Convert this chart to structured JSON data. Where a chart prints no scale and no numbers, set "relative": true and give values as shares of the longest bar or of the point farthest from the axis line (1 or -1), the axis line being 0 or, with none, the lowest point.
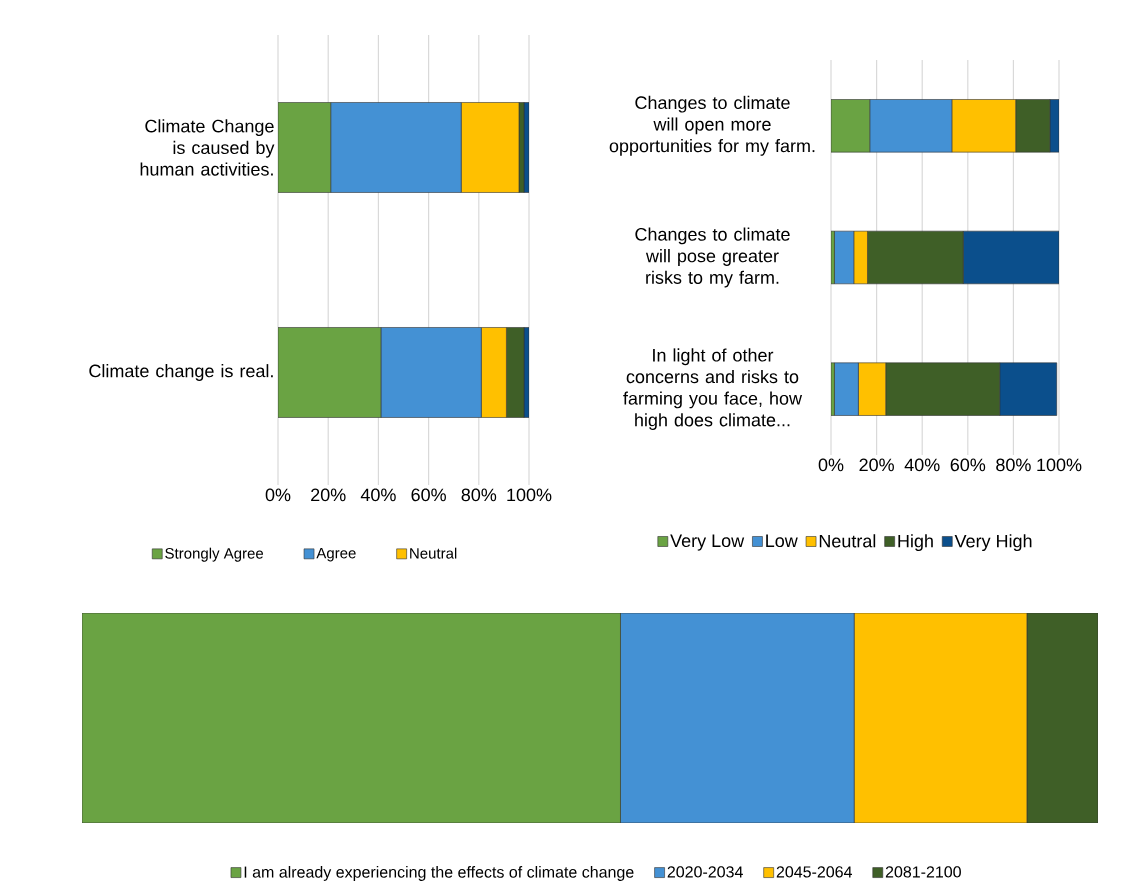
{
  "chart_data": [
    {
      "type": "bar",
      "orientation": "horizontal",
      "stacked": true,
      "categories": [
        "Climate Change is caused by human activities.",
        "Climate change is real."
      ],
      "series": [
        {
          "name": "Strongly Agree",
          "color": "#6aa343",
          "values": [
            21,
            41
          ]
        },
        {
          "name": "Agree",
          "color": "#4491d4",
          "values": [
            52,
            40
          ]
        },
        {
          "name": "Neutral",
          "color": "#ffc000",
          "values": [
            23,
            10
          ]
        },
        {
          "color": "#3f5f27",
          "values": [
            2,
            7
          ]
        },
        {
          "color": "#0b4f8c",
          "values": [
            2,
            2
          ]
        }
      ],
      "xlim": [
        0,
        100
      ],
      "xticks": [
        {
          "value": 0,
          "label": "0%"
        },
        {
          "value": 20,
          "label": "20%"
        },
        {
          "value": 40,
          "label": "40%"
        },
        {
          "value": 60,
          "label": "60%"
        },
        {
          "value": 80,
          "label": "80%"
        },
        {
          "value": 100,
          "label": "100%"
        }
      ],
      "grid": "x",
      "legend": "bottom"
    },
    {
      "type": "bar",
      "orientation": "horizontal",
      "stacked": true,
      "categories": [
        "Changes to climate will open more opportunities for my farm.",
        "Changes to climate will pose greater risks to my farm.",
        "In light of other concerns and risks to farming you face, how high does climate..."
      ],
      "series": [
        {
          "name": "Very Low",
          "color": "#6aa343",
          "values": [
            17,
            1.5,
            1.5
          ]
        },
        {
          "name": "Low",
          "color": "#4491d4",
          "values": [
            36,
            8.5,
            10.5
          ]
        },
        {
          "name": "Neutral",
          "color": "#ffc000",
          "values": [
            28,
            6,
            12
          ]
        },
        {
          "name": "High",
          "color": "#3f5f27",
          "values": [
            15,
            42,
            50
          ]
        },
        {
          "name": "Very High",
          "color": "#0b4f8c",
          "values": [
            4,
            42,
            25
          ]
        }
      ],
      "xlim": [
        0,
        100
      ],
      "xticks": [
        {
          "value": 0,
          "label": "0%"
        },
        {
          "value": 20,
          "label": "20%"
        },
        {
          "value": 40,
          "label": "40%"
        },
        {
          "value": 60,
          "label": "60%"
        },
        {
          "value": 80,
          "label": "80%"
        },
        {
          "value": 100,
          "label": "100%"
        }
      ],
      "grid": "x",
      "legend": "bottom"
    },
    {
      "type": "bar",
      "orientation": "horizontal",
      "stacked": true,
      "relative": true,
      "categories": [
        null
      ],
      "series": [
        {
          "name": "I am already experiencing the effects of climate change",
          "color": "#6aa343",
          "values": [
            0.53
          ]
        },
        {
          "name": "2020-2034",
          "color": "#4491d4",
          "values": [
            0.23
          ]
        },
        {
          "name": "2045-2064",
          "color": "#ffc000",
          "values": [
            0.17
          ]
        },
        {
          "name": "2081-2100",
          "color": "#3f5f27",
          "values": [
            0.07
          ]
        }
      ],
      "legend": "bottom"
    }
  ]
}
